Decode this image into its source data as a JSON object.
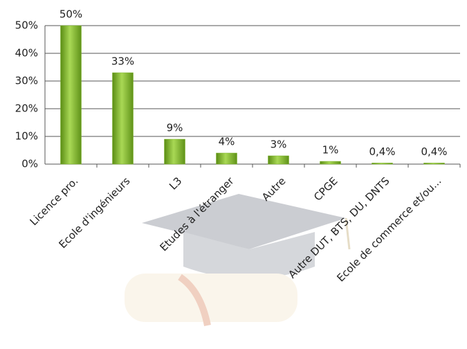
{
  "chart_data": {
    "type": "bar",
    "categories": [
      "Licence pro.",
      "Ecole d'ingénieurs",
      "L3",
      "Etudes à l'étranger",
      "Autre",
      "CPGE",
      "Autre DUT, BTS, DU, DNTS",
      "Ecole de commerce et/ou..."
    ],
    "values": [
      50,
      33,
      9,
      4,
      3,
      1,
      0.4,
      0.4
    ],
    "value_labels": [
      "50%",
      "33%",
      "9%",
      "4%",
      "3%",
      "1%",
      "0,4%",
      "0,4%"
    ],
    "color": "#7cb32a",
    "ylim": [
      0,
      50
    ],
    "yticks": [
      {
        "value": 0,
        "label": "0%"
      },
      {
        "value": 10,
        "label": "10%"
      },
      {
        "value": 20,
        "label": "20%"
      },
      {
        "value": 30,
        "label": "30%"
      },
      {
        "value": 40,
        "label": "40%"
      },
      {
        "value": 50,
        "label": "50%"
      }
    ],
    "grid": true
  }
}
